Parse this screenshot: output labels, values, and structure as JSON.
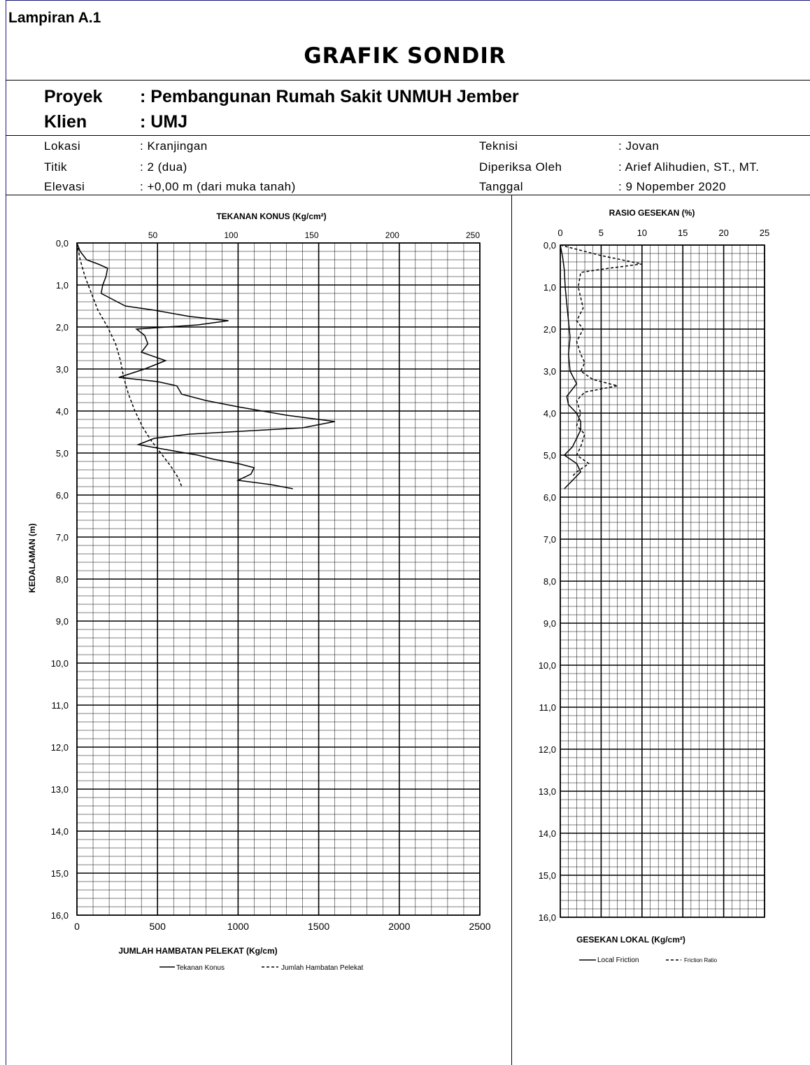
{
  "header": {
    "lampiran": "Lampiran A.1",
    "title": "GRAFIK SONDIR"
  },
  "info": {
    "proyek_label": "Proyek",
    "proyek_value": ": Pembangunan Rumah Sakit UNMUH Jember",
    "klien_label": "Klien",
    "klien_value": ": UMJ",
    "lokasi_label": "Lokasi",
    "lokasi_value": ": Kranjingan",
    "titik_label": "Titik",
    "titik_value": ": 2 (dua)",
    "elevasi_label": "Elevasi",
    "elevasi_value": ": +0,00 m (dari muka tanah)",
    "teknisi_label": "Teknisi",
    "teknisi_value": ": Jovan",
    "diperiksa_label": "Diperiksa Oleh",
    "diperiksa_value": ": Arief Alihudien, ST., MT.",
    "tanggal_label": "Tanggal",
    "tanggal_value": ": 9 Nopember 2020"
  },
  "colors": {
    "line": "#000000",
    "grid": "#000000",
    "frame": "#1a1a7a"
  },
  "chart_data": [
    {
      "type": "line",
      "title": "TEKANAN KONUS (Kg/cm²)",
      "xlabel": "JUMLAH HAMBATAN PELEKAT (Kg/cm)",
      "ylabel": "KEDALAMAN (m)",
      "top_axis": {
        "range": [
          0,
          250
        ],
        "ticks": [
          50,
          100,
          150,
          200,
          250
        ]
      },
      "bottom_axis": {
        "range": [
          0,
          2500
        ],
        "ticks": [
          "0",
          "500",
          "1000",
          "1500",
          "2000",
          "2500"
        ]
      },
      "ylim": [
        0,
        16
      ],
      "yticks": [
        "0,0",
        "1,0",
        "2,0",
        "3,0",
        "4,0",
        "5,0",
        "6,0",
        "7,0",
        "8,0",
        "9,0",
        "10,0",
        "11,0",
        "12,0",
        "13,0",
        "14,0",
        "15,0",
        "16,0"
      ],
      "legend": [
        "Tekanan Konus",
        "Jumlah Hambatan Pelekat"
      ],
      "series": [
        {
          "name": "Tekanan Konus",
          "style": "solid",
          "axis": "top",
          "points": [
            [
              0,
              0
            ],
            [
              2,
              0.2
            ],
            [
              6,
              0.4
            ],
            [
              13,
              0.5
            ],
            [
              19,
              0.6
            ],
            [
              18,
              0.8
            ],
            [
              16,
              1.0
            ],
            [
              15,
              1.2
            ],
            [
              20,
              1.3
            ],
            [
              30,
              1.5
            ],
            [
              48,
              1.6
            ],
            [
              70,
              1.75
            ],
            [
              94,
              1.85
            ],
            [
              75,
              1.95
            ],
            [
              37,
              2.05
            ],
            [
              42,
              2.2
            ],
            [
              44,
              2.4
            ],
            [
              40,
              2.6
            ],
            [
              55,
              2.8
            ],
            [
              42,
              3.0
            ],
            [
              26,
              3.2
            ],
            [
              50,
              3.3
            ],
            [
              62,
              3.4
            ],
            [
              65,
              3.6
            ],
            [
              80,
              3.75
            ],
            [
              100,
              3.9
            ],
            [
              130,
              4.1
            ],
            [
              160,
              4.25
            ],
            [
              140,
              4.4
            ],
            [
              70,
              4.55
            ],
            [
              48,
              4.65
            ],
            [
              38,
              4.8
            ],
            [
              60,
              4.95
            ],
            [
              75,
              5.05
            ],
            [
              85,
              5.15
            ],
            [
              100,
              5.25
            ],
            [
              110,
              5.35
            ],
            [
              108,
              5.5
            ],
            [
              100,
              5.65
            ],
            [
              120,
              5.75
            ],
            [
              134,
              5.85
            ]
          ]
        },
        {
          "name": "Jumlah Hambatan Pelekat",
          "style": "dashed",
          "axis": "bottom",
          "points": [
            [
              0,
              0
            ],
            [
              20,
              0.4
            ],
            [
              50,
              0.8
            ],
            [
              90,
              1.2
            ],
            [
              130,
              1.6
            ],
            [
              190,
              2.0
            ],
            [
              240,
              2.4
            ],
            [
              270,
              2.8
            ],
            [
              290,
              3.2
            ],
            [
              320,
              3.6
            ],
            [
              360,
              4.0
            ],
            [
              410,
              4.4
            ],
            [
              460,
              4.7
            ],
            [
              520,
              5.0
            ],
            [
              580,
              5.3
            ],
            [
              630,
              5.6
            ],
            [
              650,
              5.8
            ]
          ]
        }
      ]
    },
    {
      "type": "line",
      "title": "RASIO GESEKAN (%)",
      "xlabel": "GESEKAN LOKAL (Kg/cm²)",
      "top_axis": {
        "range": [
          0,
          25
        ],
        "ticks": [
          "0",
          "5",
          "10",
          "15",
          "20",
          "25"
        ]
      },
      "ylim": [
        0,
        16
      ],
      "yticks": [
        "0,0",
        "1,0",
        "2,0",
        "3,0",
        "4,0",
        "5,0",
        "6,0",
        "7,0",
        "8,0",
        "9,0",
        "10,0",
        "11,0",
        "12,0",
        "13,0",
        "14,0",
        "15,0",
        "16,0"
      ],
      "legend": [
        "Local Friction",
        "Friction Ratio"
      ],
      "series": [
        {
          "name": "Local Friction",
          "style": "solid",
          "points": [
            [
              0,
              0
            ],
            [
              0.3,
              0.3
            ],
            [
              0.5,
              0.6
            ],
            [
              0.6,
              1.0
            ],
            [
              0.8,
              1.4
            ],
            [
              1.0,
              1.8
            ],
            [
              1.2,
              2.2
            ],
            [
              1.0,
              2.6
            ],
            [
              1.2,
              3.0
            ],
            [
              2.0,
              3.3
            ],
            [
              0.8,
              3.6
            ],
            [
              1.0,
              3.8
            ],
            [
              2.0,
              4.0
            ],
            [
              2.5,
              4.2
            ],
            [
              2.5,
              4.4
            ],
            [
              2.0,
              4.6
            ],
            [
              1.5,
              4.8
            ],
            [
              0.5,
              5.0
            ],
            [
              2.0,
              5.2
            ],
            [
              2.5,
              5.4
            ],
            [
              1.5,
              5.6
            ],
            [
              0.5,
              5.8
            ]
          ]
        },
        {
          "name": "Friction Ratio",
          "style": "dashed",
          "points": [
            [
              0,
              0
            ],
            [
              5,
              0.25
            ],
            [
              10,
              0.45
            ],
            [
              6,
              0.55
            ],
            [
              2.5,
              0.65
            ],
            [
              2.2,
              1.0
            ],
            [
              2.8,
              1.5
            ],
            [
              2.0,
              1.8
            ],
            [
              2.8,
              2.0
            ],
            [
              2.0,
              2.3
            ],
            [
              2.5,
              2.6
            ],
            [
              3.0,
              2.8
            ],
            [
              2.5,
              3.0
            ],
            [
              4.0,
              3.2
            ],
            [
              7.0,
              3.35
            ],
            [
              3.0,
              3.5
            ],
            [
              2.0,
              3.7
            ],
            [
              2.5,
              4.0
            ],
            [
              2.0,
              4.3
            ],
            [
              3.0,
              4.5
            ],
            [
              2.5,
              4.8
            ],
            [
              2.0,
              5.0
            ],
            [
              3.5,
              5.2
            ],
            [
              2.0,
              5.4
            ],
            [
              1.5,
              5.5
            ]
          ]
        }
      ]
    }
  ]
}
